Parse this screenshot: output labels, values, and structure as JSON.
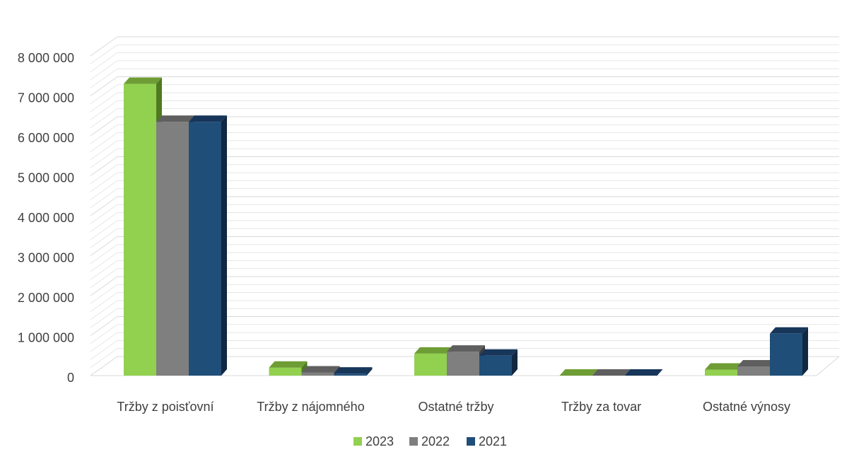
{
  "chart_data": {
    "type": "bar",
    "title": "",
    "xlabel": "",
    "ylabel": "",
    "ylim": [
      0,
      8000000
    ],
    "yticks": [
      0,
      1000000,
      2000000,
      3000000,
      4000000,
      5000000,
      6000000,
      7000000,
      8000000
    ],
    "ytick_labels": [
      "0",
      "1 000 000",
      "2 000 000",
      "3 000 000",
      "4 000 000",
      "5 000 000",
      "6 000 000",
      "7 000 000",
      "8 000 000"
    ],
    "categories": [
      "Tržby z poisťovní",
      "Tržby z nájomného",
      "Ostatné tržby",
      "Tržby za tovar",
      "Ostatné výnosy"
    ],
    "series": [
      {
        "name": "2023",
        "values": [
          7300000,
          200000,
          550000,
          0,
          150000
        ]
      },
      {
        "name": "2022",
        "values": [
          6350000,
          80000,
          600000,
          0,
          230000
        ]
      },
      {
        "name": "2021",
        "values": [
          6350000,
          50000,
          500000,
          0,
          1050000
        ]
      }
    ],
    "grid": true,
    "legend_position": "bottom",
    "style": "3d-clustered-column"
  },
  "colors": {
    "2023": {
      "front": "#92d050",
      "side": "#4f7a21",
      "top": "#6e9d35"
    },
    "2022": {
      "front": "#7f7f7f",
      "side": "#404040",
      "top": "#5f5f5f"
    },
    "2021": {
      "front": "#1f4e79",
      "side": "#102840",
      "top": "#17365a"
    },
    "gridline": "#d9d9d9",
    "text": "#404040"
  }
}
